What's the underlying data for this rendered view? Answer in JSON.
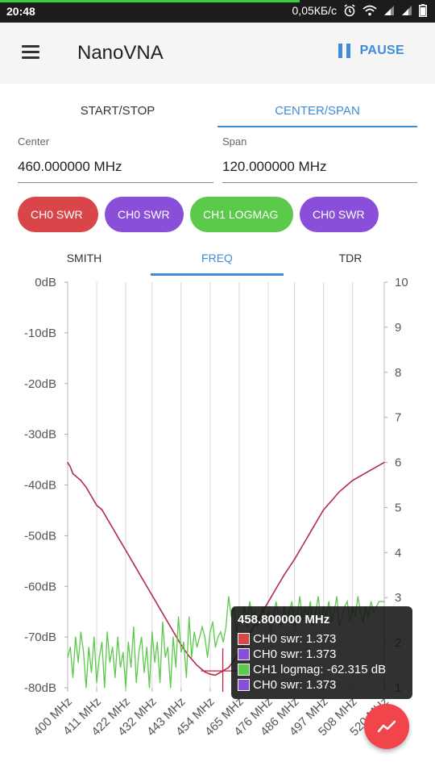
{
  "status_bar": {
    "time": "20:48",
    "network_speed": "0,05КБ/с",
    "icons": [
      "alarm-icon",
      "wifi-icon",
      "signal-icon",
      "signal-icon",
      "battery-icon"
    ]
  },
  "app_bar": {
    "title": "NanoVNA",
    "pause_label": "PAUSE"
  },
  "range_tabs": [
    {
      "label": "START/STOP",
      "active": false
    },
    {
      "label": "CENTER/SPAN",
      "active": true
    }
  ],
  "fields": {
    "center_label": "Center",
    "center_value": "460.000000 MHz",
    "span_label": "Span",
    "span_value": "120.000000 MHz"
  },
  "trace_chips": [
    {
      "label": "CH0 SWR",
      "color": "#d9464a"
    },
    {
      "label": "CH0 SWR",
      "color": "#8a4fd8"
    },
    {
      "label": "CH1 LOGMAG",
      "color": "#5bc94a"
    },
    {
      "label": "CH0 SWR",
      "color": "#8a4fd8"
    }
  ],
  "view_tabs": [
    {
      "label": "SMITH",
      "active": false
    },
    {
      "label": "FREQ",
      "active": true
    },
    {
      "label": "TDR",
      "active": false
    }
  ],
  "chart_data": {
    "type": "line",
    "x_unit": "MHz",
    "xlim": [
      400,
      520
    ],
    "x_tick_labels": [
      "400 MHz",
      "411 MHz",
      "422 MHz",
      "432 MHz",
      "443 MHz",
      "454 MHz",
      "465 MHz",
      "476 MHz",
      "486 MHz",
      "497 MHz",
      "508 MHz",
      "520 MHz"
    ],
    "x_ticks": [
      400,
      411,
      422,
      432,
      443,
      454,
      465,
      476,
      486,
      497,
      508,
      520
    ],
    "left_axis": {
      "ticks": [
        "0dB",
        "-10dB",
        "-20dB",
        "-30dB",
        "-40dB",
        "-50dB",
        "-60dB",
        "-70dB",
        "-80dB"
      ],
      "range": [
        -80,
        0
      ]
    },
    "right_axis": {
      "ticks": [
        "10",
        "9",
        "8",
        "7",
        "6",
        "5",
        "4",
        "3",
        "2",
        "1"
      ],
      "range": [
        1,
        10
      ]
    },
    "grid": true,
    "series": [
      {
        "name": "CH0 swr",
        "color": "#b22a4e",
        "axis": "right",
        "x": [
          400,
          401,
          402,
          403,
          405,
          407,
          409,
          411,
          413,
          415,
          417,
          419,
          422,
          425,
          428,
          432,
          436,
          440,
          443,
          446,
          449,
          452,
          454,
          456,
          458.8,
          461,
          463,
          465,
          467,
          470,
          473,
          476,
          479,
          482,
          486,
          489,
          492,
          495,
          497,
          500,
          503,
          506,
          508,
          511,
          514,
          517,
          520
        ],
        "values": [
          6.0,
          5.9,
          5.75,
          5.7,
          5.6,
          5.45,
          5.25,
          5.05,
          4.95,
          4.75,
          4.55,
          4.35,
          4.05,
          3.75,
          3.45,
          3.05,
          2.65,
          2.25,
          1.95,
          1.7,
          1.5,
          1.35,
          1.3,
          1.28,
          1.373,
          1.45,
          1.6,
          1.8,
          2.0,
          2.3,
          2.6,
          2.9,
          3.2,
          3.5,
          3.85,
          4.15,
          4.45,
          4.75,
          4.95,
          5.15,
          5.35,
          5.5,
          5.6,
          5.7,
          5.8,
          5.9,
          6.0
        ]
      },
      {
        "name": "CH1 logmag",
        "color": "#5bc94a",
        "axis": "left",
        "x": [
          400,
          401,
          402,
          403,
          404,
          405,
          406,
          407,
          408,
          409,
          410,
          411,
          412,
          413,
          414,
          415,
          416,
          417,
          418,
          419,
          420,
          421,
          422,
          423,
          424,
          425,
          426,
          427,
          428,
          429,
          430,
          431,
          432,
          433,
          434,
          435,
          436,
          437,
          438,
          439,
          440,
          441,
          442,
          443,
          444,
          445,
          446,
          447,
          448,
          449,
          450,
          451,
          452,
          453,
          454,
          455,
          456,
          457,
          458,
          459,
          460,
          461,
          462,
          463,
          464,
          465,
          466,
          467,
          468,
          469,
          470,
          471,
          472,
          473,
          474,
          475,
          476,
          477,
          478,
          479,
          480,
          481,
          482,
          483,
          484,
          485,
          486,
          487,
          488,
          489,
          490,
          491,
          492,
          493,
          494,
          495,
          496,
          497,
          498,
          499,
          500,
          501,
          502,
          503,
          504,
          505,
          506,
          507,
          508,
          509,
          510,
          511,
          512,
          513,
          514,
          515,
          516,
          517,
          518,
          519,
          520
        ],
        "values": [
          -74,
          -72,
          -78,
          -70,
          -75,
          -69,
          -73,
          -80,
          -72,
          -77,
          -70,
          -79,
          -74,
          -71,
          -80,
          -69,
          -75,
          -72,
          -78,
          -70,
          -76,
          -73,
          -80,
          -71,
          -76,
          -68,
          -79,
          -73,
          -70,
          -77,
          -72,
          -80,
          -69,
          -75,
          -71,
          -79,
          -67,
          -74,
          -72,
          -80,
          -70,
          -76,
          -66,
          -73,
          -71,
          -78,
          -66,
          -74,
          -69,
          -72,
          -70,
          -68,
          -70,
          -74,
          -69,
          -67,
          -72,
          -70,
          -69,
          -71,
          -68,
          -62,
          -66,
          -64,
          -69,
          -66,
          -67,
          -64,
          -68,
          -63,
          -66,
          -65,
          -68,
          -66,
          -64,
          -67,
          -65,
          -69,
          -66,
          -63,
          -66,
          -68,
          -64,
          -67,
          -65,
          -63,
          -68,
          -66,
          -62,
          -67,
          -64,
          -66,
          -63,
          -68,
          -65,
          -62,
          -67,
          -64,
          -66,
          -63,
          -67,
          -65,
          -62,
          -68,
          -66,
          -64,
          -63,
          -67,
          -64,
          -66,
          -62,
          -65,
          -67,
          -64,
          -66,
          -63,
          -65,
          -64,
          -63,
          -63,
          -63
        ]
      }
    ],
    "marker": {
      "x": 458.8,
      "label": "458.800000 MHz"
    }
  },
  "tooltip": {
    "title": "458.800000 MHz",
    "rows": [
      {
        "text": "CH0 swr: 1.373",
        "color": "#d9464a"
      },
      {
        "text": "CH0 swr: 1.373",
        "color": "#8a4fd8"
      },
      {
        "text": "CH1 logmag: -62.315 dB",
        "color": "#5bc94a"
      },
      {
        "text": "CH0 swr: 1.373",
        "color": "#8a4fd8"
      }
    ]
  },
  "fab": {
    "icon": "trend-line-icon",
    "color": "#f2444b"
  }
}
